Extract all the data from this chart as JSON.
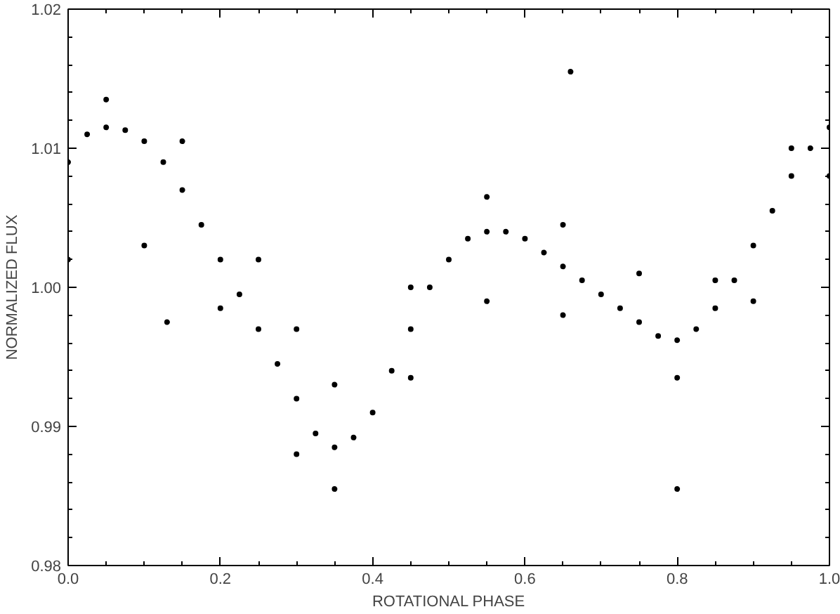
{
  "chart_data": {
    "type": "scatter",
    "xlabel": "ROTATIONAL PHASE",
    "ylabel": "NORMALIZED FLUX",
    "xlim": [
      0.0,
      1.0
    ],
    "ylim": [
      0.98,
      1.02
    ],
    "xticks": [
      {
        "value": 0.0,
        "label": "0.0"
      },
      0.2,
      0.4,
      0.6,
      0.8,
      {
        "value": 1.0,
        "label": "1.0"
      }
    ],
    "yticks": [
      0.98,
      0.99,
      {
        "value": 1.0,
        "label": "1.00"
      },
      1.01,
      1.02
    ],
    "marker": "circle",
    "grid": false,
    "series": [
      {
        "color": "#000000",
        "x": [
          0.0,
          0.025,
          0.05,
          0.075,
          0.1,
          0.125,
          0.15,
          0.175,
          0.2,
          0.225,
          0.25,
          0.275,
          0.3,
          0.325,
          0.35,
          0.375,
          0.4,
          0.425,
          0.45,
          0.475,
          0.5,
          0.525,
          0.55,
          0.575,
          0.6,
          0.625,
          0.65,
          0.675,
          0.7,
          0.725,
          0.75,
          0.775,
          0.8,
          0.825,
          0.85,
          0.875,
          0.9,
          0.925,
          0.95,
          0.975,
          1.0,
          0.05,
          0.15,
          0.25,
          0.3,
          0.35,
          0.45,
          0.55,
          0.65,
          0.75,
          0.85,
          0.95,
          0.0,
          0.1,
          0.2,
          0.3,
          0.35,
          0.45,
          0.55,
          0.65,
          0.8,
          0.9,
          1.0,
          0.66,
          0.13,
          0.8
        ],
        "values": [
          1.009,
          1.011,
          1.0115,
          1.0113,
          1.0105,
          1.009,
          1.007,
          1.0045,
          1.002,
          0.9995,
          0.997,
          0.9945,
          0.992,
          0.9895,
          0.9885,
          0.9892,
          0.991,
          0.994,
          0.997,
          1.0,
          1.002,
          1.0035,
          1.004,
          1.004,
          1.0035,
          1.0025,
          1.0015,
          1.0005,
          0.9995,
          0.9985,
          0.9975,
          0.9965,
          0.9962,
          0.997,
          0.9985,
          1.0005,
          1.003,
          1.0055,
          1.008,
          1.01,
          1.0115,
          1.0135,
          1.0105,
          1.002,
          0.997,
          0.993,
          1.0,
          1.0065,
          1.0045,
          1.001,
          1.0005,
          1.01,
          1.002,
          1.003,
          0.9985,
          0.988,
          0.9855,
          0.9935,
          0.999,
          0.998,
          0.9935,
          0.999,
          1.008,
          1.0155,
          0.9975,
          0.9855
        ]
      }
    ]
  }
}
